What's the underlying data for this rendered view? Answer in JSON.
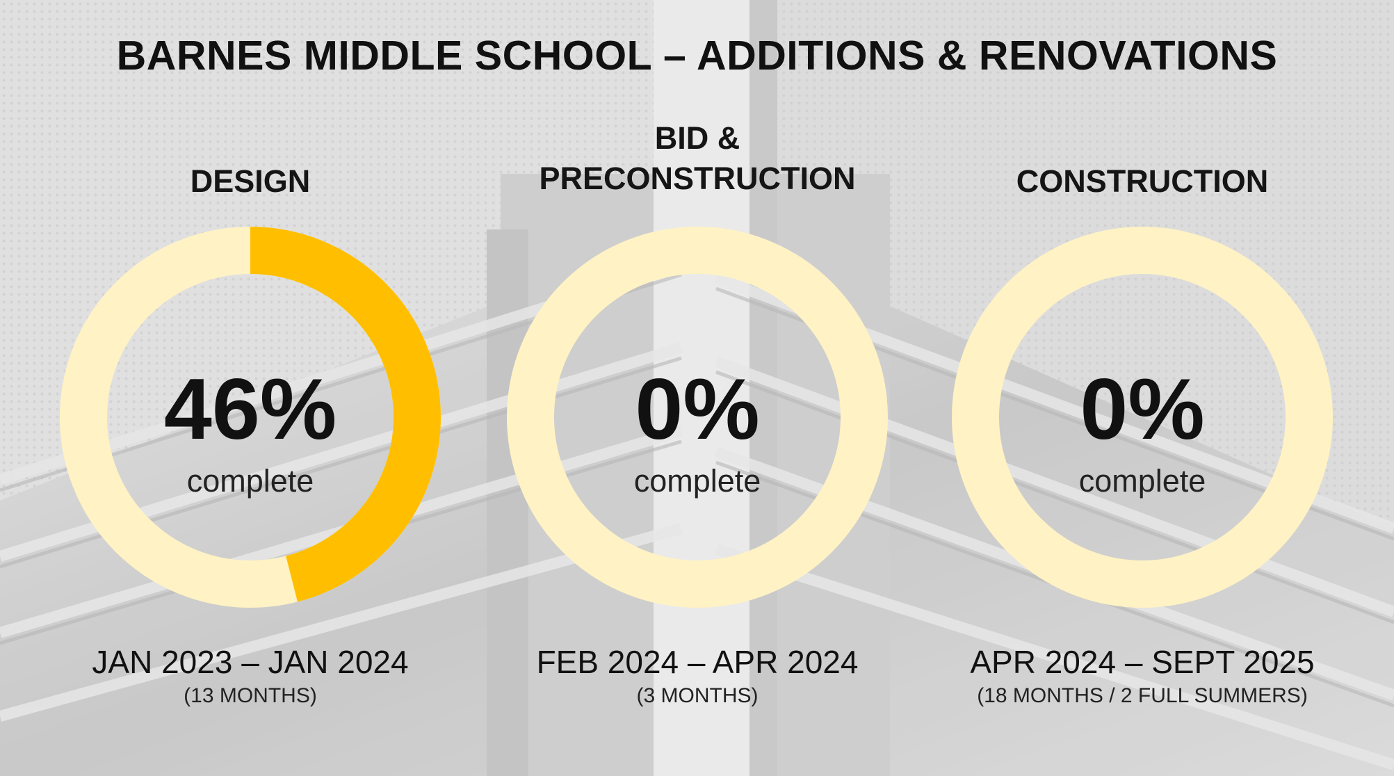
{
  "title": "BARNES MIDDLE SCHOOL – ADDITIONS & RENOVATIONS",
  "colors": {
    "ring_track": "#FFF2C4",
    "ring_fill": "#FFBF00",
    "text": "#111111"
  },
  "phases": [
    {
      "heading": [
        "DESIGN"
      ],
      "percent_value": 46,
      "percent_label": "46%",
      "complete_label": "complete",
      "dates": "JAN 2023 – JAN 2024",
      "duration": "(13 MONTHS)"
    },
    {
      "heading": [
        "BID &",
        "PRECONSTRUCTION"
      ],
      "percent_value": 0,
      "percent_label": "0%",
      "complete_label": "complete",
      "dates": "FEB 2024 – APR 2024",
      "duration": "(3 MONTHS)"
    },
    {
      "heading": [
        "CONSTRUCTION"
      ],
      "percent_value": 0,
      "percent_label": "0%",
      "complete_label": "complete",
      "dates": "APR 2024 – SEPT 2025",
      "duration": "(18 MONTHS / 2 FULL SUMMERS)"
    }
  ]
}
